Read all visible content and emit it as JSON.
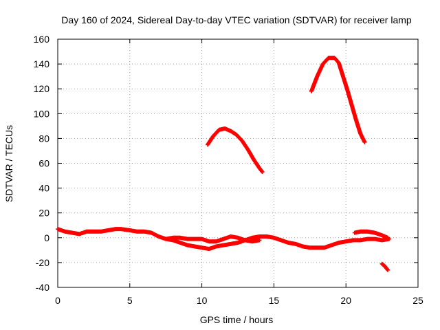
{
  "chart_data": {
    "type": "scatter",
    "title": "Day 160 of 2024, Sidereal Day-to-day VTEC variation (SDTVAR) for receiver lamp",
    "xlabel": "GPS time / hours",
    "ylabel": "SDTVAR / TECUs",
    "xlim": [
      0,
      25
    ],
    "ylim": [
      -40,
      160
    ],
    "xticks": [
      0,
      5,
      10,
      15,
      20,
      25
    ],
    "yticks": [
      -40,
      -20,
      0,
      20,
      40,
      60,
      80,
      100,
      120,
      140,
      160
    ],
    "grid": true,
    "legend": "none",
    "marker_color": "#ff0000",
    "series": [
      {
        "name": "arc-baseline-a",
        "x": [
          0,
          0.5,
          1.0,
          1.5,
          2.0,
          2.5,
          3.0,
          3.5,
          4.0,
          4.4,
          5.0,
          5.5,
          6.0,
          6.5,
          7.0,
          7.5,
          8.0,
          8.5,
          9.0,
          9.5,
          10.0,
          10.5,
          11.0,
          11.5,
          12.0,
          12.5,
          13.0,
          13.5,
          14.0,
          14.5,
          15.0,
          15.5,
          16.0,
          16.5,
          17.0,
          17.5,
          18.0,
          18.5,
          19.0,
          19.5,
          20.0,
          20.5,
          21.0,
          21.5,
          22.0,
          22.5,
          23.0
        ],
        "y": [
          7,
          5,
          4,
          3,
          5,
          5,
          5,
          6,
          7,
          7,
          6,
          5,
          5,
          4,
          1,
          -1,
          -2,
          -4,
          -6,
          -7,
          -8,
          -9,
          -7,
          -6,
          -5,
          -4,
          -2,
          0,
          1,
          1,
          0,
          -2,
          -4,
          -5,
          -7,
          -8,
          -8,
          -8,
          -6,
          -4,
          -3,
          -2,
          -2,
          -1,
          -1,
          -2,
          -1
        ]
      },
      {
        "name": "arc-baseline-b",
        "x": [
          7.5,
          8.0,
          8.5,
          9.0,
          9.5,
          10.0,
          10.5,
          11.0,
          11.5,
          12.0,
          12.5,
          13.0,
          13.5,
          14.0
        ],
        "y": [
          -1,
          0,
          0,
          -1,
          -1,
          -1,
          -3,
          -3,
          -1,
          1,
          0,
          -2,
          -3,
          -2
        ]
      },
      {
        "name": "arc-baseline-c",
        "x": [
          20.6,
          21.0,
          21.5,
          22.0,
          22.5,
          22.9
        ],
        "y": [
          4,
          5,
          5,
          4,
          2,
          0
        ]
      },
      {
        "name": "arc-high-1",
        "x": [
          10.4,
          10.8,
          11.2,
          11.6,
          12.0,
          12.4,
          12.8,
          13.2,
          13.6,
          14.0,
          14.2
        ],
        "y": [
          75,
          82,
          87,
          88,
          86,
          83,
          78,
          71,
          63,
          56,
          53
        ]
      },
      {
        "name": "arc-high-2",
        "x": [
          17.6,
          18.0,
          18.4,
          18.8,
          19.2,
          19.5,
          19.8,
          20.1,
          20.4,
          20.7,
          21.0,
          21.3
        ],
        "y": [
          118,
          130,
          140,
          145,
          145,
          141,
          130,
          119,
          107,
          95,
          84,
          77
        ]
      },
      {
        "name": "arc-tail",
        "x": [
          22.5,
          22.7,
          22.9
        ],
        "y": [
          -21,
          -23,
          -26
        ]
      }
    ]
  }
}
